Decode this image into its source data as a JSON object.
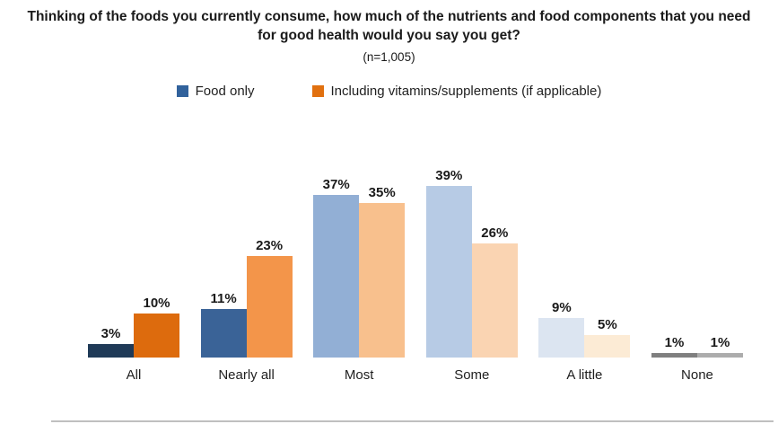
{
  "header": {
    "title": "Thinking of the foods you currently consume, how much of the nutrients and food components that you need for good health would you say you get?",
    "subtitle": "(n=1,005)"
  },
  "chart_data": {
    "type": "bar",
    "title": "Thinking of the foods you currently consume, how much of the nutrients and food components that you need for good health would you say you get?",
    "subtitle": "(n=1,005)",
    "categories": [
      "All",
      "Nearly all",
      "Most",
      "Some",
      "A little",
      "None"
    ],
    "series": [
      {
        "name": "Food only",
        "values": [
          3,
          11,
          37,
          39,
          9,
          1
        ],
        "legend_color": "#31629c",
        "bar_colors": [
          "#1f3a57",
          "#3a6397",
          "#92afd5",
          "#b7cbe5",
          "#dce5f1",
          "#7f7f7f"
        ]
      },
      {
        "name": "Including vitamins/supplements (if applicable)",
        "values": [
          10,
          23,
          35,
          26,
          5,
          1
        ],
        "legend_color": "#e1700f",
        "bar_colors": [
          "#dd6b0d",
          "#f3954a",
          "#f8c08d",
          "#fad4b2",
          "#fcebd5",
          "#acacac"
        ]
      }
    ],
    "value_labels": [
      [
        "3%",
        "11%",
        "37%",
        "39%",
        "9%",
        "1%"
      ],
      [
        "10%",
        "23%",
        "35%",
        "26%",
        "5%",
        "1%"
      ]
    ],
    "value_suffix": "%",
    "ylim": [
      0,
      40
    ],
    "grid": false,
    "legend_position": "top-center",
    "axis_color": "#bfbfbf"
  }
}
